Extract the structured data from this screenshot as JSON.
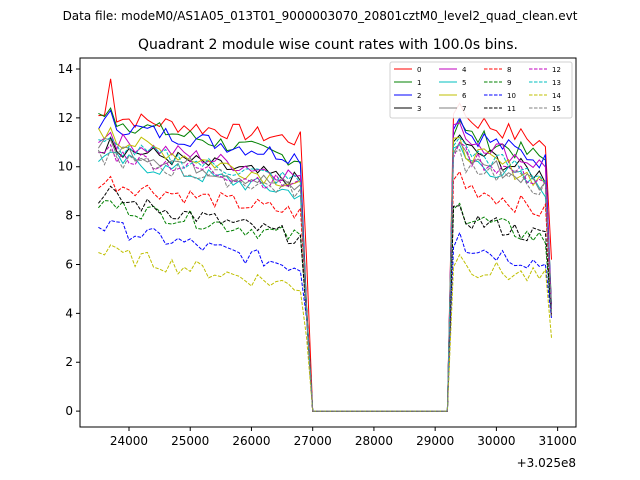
{
  "chart_data": {
    "type": "line",
    "suptitle": "Data file: modeM0/AS1A05_013T01_9000003070_20801cztM0_level2_quad_clean.evt",
    "title": "Quadrant 2 module wise count rates with 100.0s bins.",
    "xlabel": "",
    "ylabel": "",
    "offset_label": "+3.025e8",
    "xlim": [
      23200,
      31300
    ],
    "ylim": [
      -0.65,
      14.45
    ],
    "x_ticks": [
      24000,
      25000,
      26000,
      27000,
      28000,
      29000,
      30000,
      31000
    ],
    "x_tick_labels": [
      "24000",
      "25000",
      "26000",
      "27000",
      "28000",
      "29000",
      "30000",
      "31000"
    ],
    "y_ticks": [
      0,
      2,
      4,
      6,
      8,
      10,
      12,
      14
    ],
    "y_tick_labels": [
      "0",
      "2",
      "4",
      "6",
      "8",
      "10",
      "12",
      "14"
    ],
    "grid": false,
    "legend_position": "top-right",
    "gap": {
      "start": 27000,
      "end": 29200,
      "value": 0
    },
    "segment1": {
      "start": 23500,
      "end": 26800,
      "step": 100,
      "drop_x": 26900
    },
    "segment2": {
      "start": 29300,
      "end": 30800,
      "step": 100,
      "drop_x": 30900
    },
    "series": [
      {
        "name": "0",
        "color": "#ff0000",
        "dashed": false,
        "s1_start": 12.1,
        "s1_end": 11.1,
        "peak": 13.6,
        "s2_start": 12.2,
        "s2_end": 10.9,
        "drop": 6.2
      },
      {
        "name": "1",
        "color": "#008000",
        "dashed": false,
        "s1_start": 12.0,
        "s1_end": 10.3,
        "peak": 12.4,
        "s2_start": 11.5,
        "s2_end": 10.3,
        "drop": 4.3
      },
      {
        "name": "2",
        "color": "#0000ff",
        "dashed": false,
        "s1_start": 11.8,
        "s1_end": 10.4,
        "peak": 12.3,
        "s2_start": 11.6,
        "s2_end": 10.2,
        "drop": 4.1
      },
      {
        "name": "3",
        "color": "#000000",
        "dashed": false,
        "s1_start": 10.9,
        "s1_end": 9.4,
        "peak": 11.2,
        "s2_start": 10.9,
        "s2_end": 9.6,
        "drop": 4.2
      },
      {
        "name": "4",
        "color": "#bf00bf",
        "dashed": false,
        "s1_start": 11.2,
        "s1_end": 9.6,
        "peak": 11.4,
        "s2_start": 11.4,
        "s2_end": 10.0,
        "drop": 4.1
      },
      {
        "name": "5",
        "color": "#00bfbf",
        "dashed": false,
        "s1_start": 10.4,
        "s1_end": 8.9,
        "peak": 10.6,
        "s2_start": 10.5,
        "s2_end": 9.1,
        "drop": 4.0
      },
      {
        "name": "6",
        "color": "#bfbf00",
        "dashed": false,
        "s1_start": 11.3,
        "s1_end": 9.3,
        "peak": 11.6,
        "s2_start": 10.8,
        "s2_end": 9.4,
        "drop": 4.0
      },
      {
        "name": "7",
        "color": "#808080",
        "dashed": false,
        "s1_start": 10.9,
        "s1_end": 9.1,
        "peak": 11.1,
        "s2_start": 10.6,
        "s2_end": 9.2,
        "drop": 3.9
      },
      {
        "name": "8",
        "color": "#ff0000",
        "dashed": true,
        "s1_start": 9.4,
        "s1_end": 8.1,
        "peak": 9.6,
        "s2_start": 9.4,
        "s2_end": 8.1,
        "drop": 3.9
      },
      {
        "name": "9",
        "color": "#008000",
        "dashed": true,
        "s1_start": 8.5,
        "s1_end": 7.1,
        "peak": 8.6,
        "s2_start": 8.1,
        "s2_end": 7.0,
        "drop": 3.9
      },
      {
        "name": "10",
        "color": "#0000ff",
        "dashed": true,
        "s1_start": 7.6,
        "s1_end": 5.9,
        "peak": 7.8,
        "s2_start": 6.9,
        "s2_end": 6.0,
        "drop": 3.8
      },
      {
        "name": "11",
        "color": "#000000",
        "dashed": true,
        "s1_start": 8.8,
        "s1_end": 7.1,
        "peak": 9.2,
        "s2_start": 8.0,
        "s2_end": 7.1,
        "drop": 3.9
      },
      {
        "name": "12",
        "color": "#bf00bf",
        "dashed": true,
        "s1_start": 10.6,
        "s1_end": 9.2,
        "peak": 10.9,
        "s2_start": 10.6,
        "s2_end": 9.4,
        "drop": 4.0
      },
      {
        "name": "13",
        "color": "#00bfbf",
        "dashed": true,
        "s1_start": 10.9,
        "s1_end": 9.4,
        "peak": 11.2,
        "s2_start": 10.8,
        "s2_end": 9.6,
        "drop": 4.0
      },
      {
        "name": "14",
        "color": "#bfbf00",
        "dashed": true,
        "s1_start": 6.5,
        "s1_end": 5.1,
        "peak": 6.8,
        "s2_start": 6.0,
        "s2_end": 5.4,
        "drop": 3.0
      },
      {
        "name": "15",
        "color": "#808080",
        "dashed": true,
        "s1_start": 10.4,
        "s1_end": 9.0,
        "peak": 10.7,
        "s2_start": 10.3,
        "s2_end": 9.1,
        "drop": 3.9
      }
    ]
  }
}
